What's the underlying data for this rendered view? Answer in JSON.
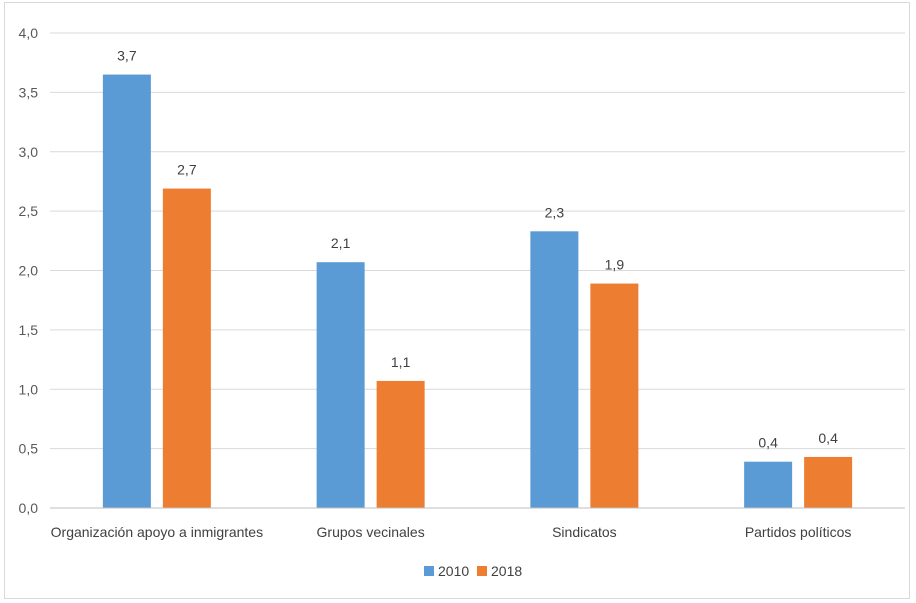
{
  "chart_data": {
    "type": "bar",
    "title": "",
    "xlabel": "",
    "ylabel": "",
    "ylim": [
      0,
      4
    ],
    "yticks": [
      "0,0",
      "0,5",
      "1,0",
      "1,5",
      "2,0",
      "2,5",
      "3,0",
      "3,5",
      "4,0"
    ],
    "ytick_values": [
      0,
      0.5,
      1.0,
      1.5,
      2.0,
      2.5,
      3.0,
      3.5,
      4.0
    ],
    "categories": [
      "Organización apoyo a inmigrantes",
      "Grupos vecinales",
      "Sindicatos",
      "Partidos políticos"
    ],
    "series": [
      {
        "name": "2010",
        "color": "#5b9bd5",
        "values": [
          3.65,
          2.07,
          2.33,
          0.39
        ],
        "labels": [
          "3,7",
          "2,1",
          "2,3",
          "0,4"
        ]
      },
      {
        "name": "2018",
        "color": "#ed7d31",
        "values": [
          2.69,
          1.07,
          1.89,
          0.43
        ],
        "labels": [
          "2,7",
          "1,1",
          "1,9",
          "0,4"
        ]
      }
    ],
    "grid": true,
    "legend_position": "bottom"
  }
}
